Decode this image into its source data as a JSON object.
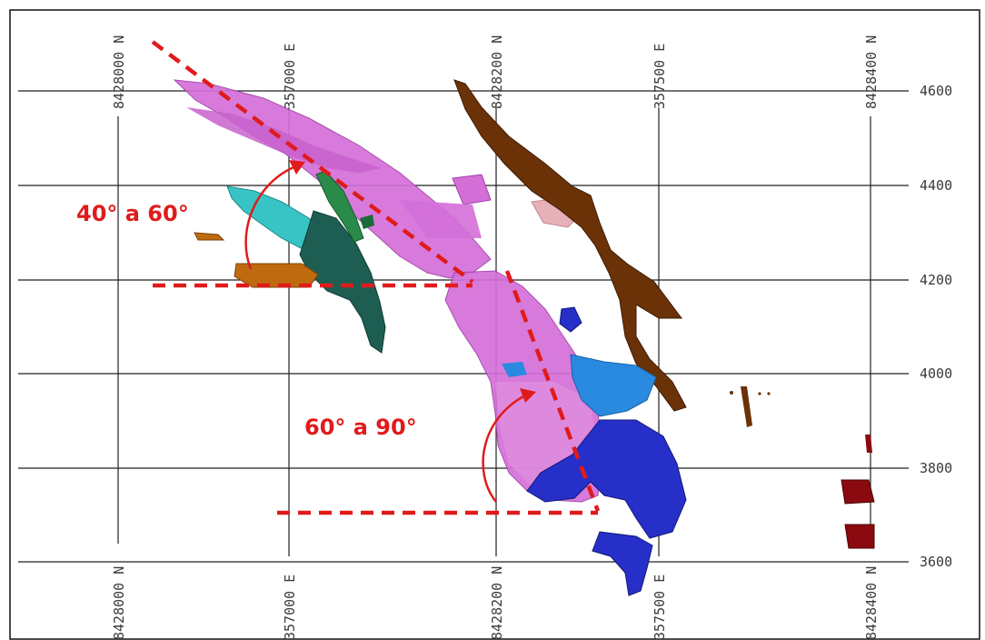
{
  "colors": {
    "grid": "#222222",
    "annotation": "#e01b1b",
    "pink_body": "#d46fd8",
    "cyan_body": "#38c4c4",
    "darkteal_body": "#1e5e52",
    "green_body": "#2a8a4a",
    "brown_body": "#6b3208",
    "orange_body": "#c06a10",
    "blue_body": "#2630c8",
    "lightblue_body": "#2a8ae0",
    "darkred_body": "#8a0a10",
    "lightpink_body": "#e8b0b8"
  },
  "axes": {
    "top_labels": [
      "8428000 N",
      "357000 E",
      "8428200 N",
      "357500 E",
      "8428400 N"
    ],
    "bottom_labels": [
      "8428000 N",
      "357000 E",
      "8428200 N",
      "357500 E",
      "8428400 N"
    ],
    "right_labels": [
      "4600",
      "4400",
      "4200",
      "4000",
      "3800",
      "3600"
    ]
  },
  "annotations": {
    "angle_upper": "40° a 60°",
    "angle_lower": "60° a 90°"
  }
}
